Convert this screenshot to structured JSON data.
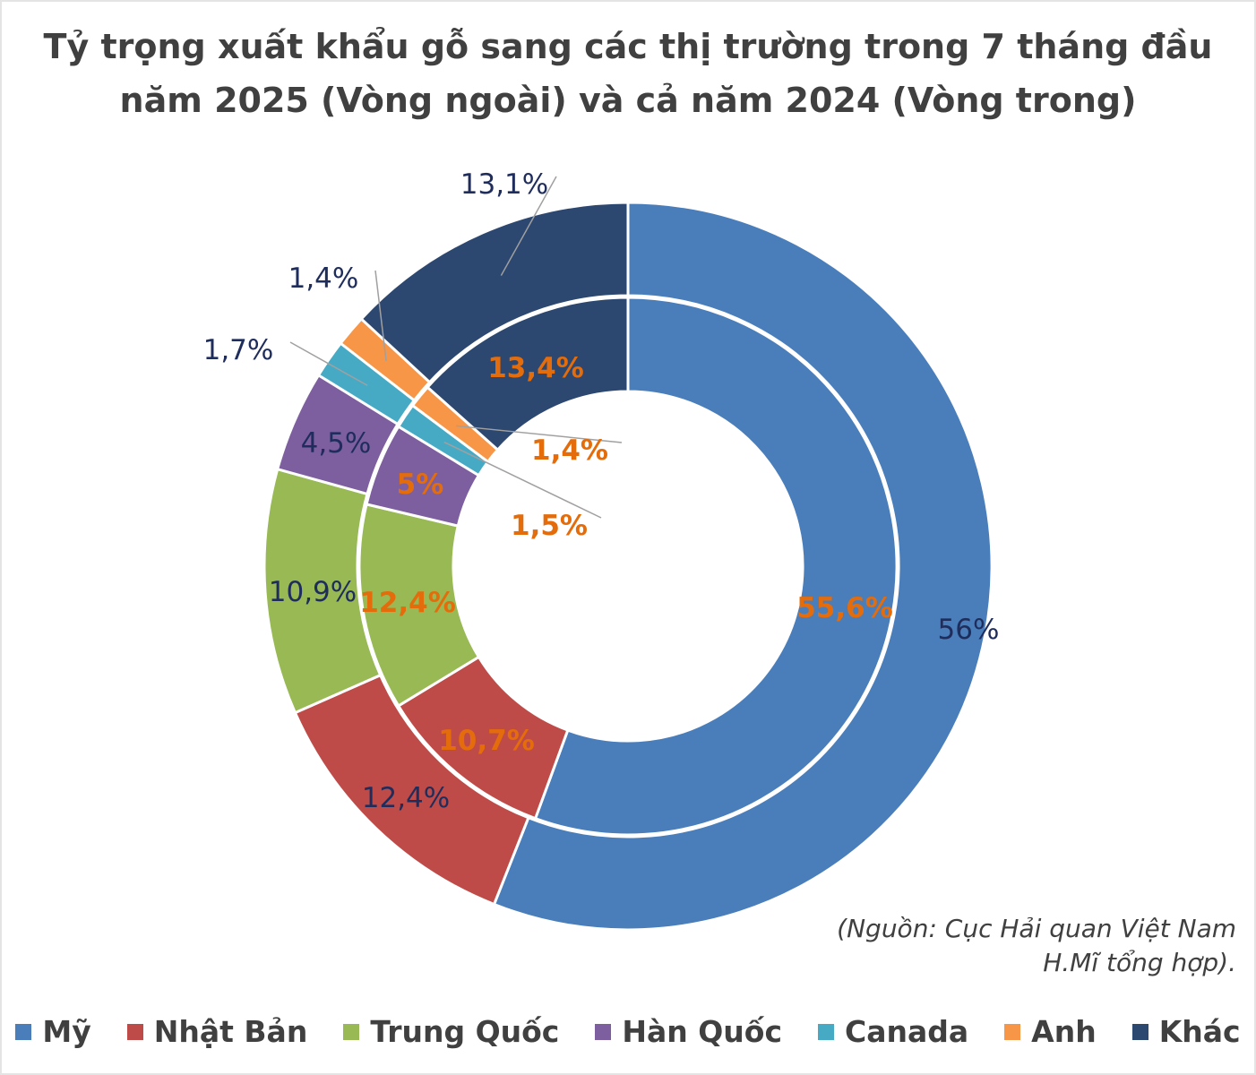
{
  "chart_data": {
    "type": "pie",
    "variant": "nested-donut",
    "title": "Tỷ trọng xuất khẩu gỗ sang các thị trường trong 7 tháng đầu năm 2025 (Vòng ngoài) và cả năm 2024 (Vòng trong)",
    "categories": [
      "Mỹ",
      "Nhật Bản",
      "Trung Quốc",
      "Hàn Quốc",
      "Canada",
      "Anh",
      "Khác"
    ],
    "colors": [
      "#4a7ebb",
      "#be4b48",
      "#98b954",
      "#7d5fa0",
      "#46aac5",
      "#f79646",
      "#2c4770"
    ],
    "series": [
      {
        "ring": "outer",
        "values": [
          56,
          12.4,
          10.9,
          4.5,
          1.7,
          1.4,
          13.1
        ],
        "labels": [
          "56%",
          "12,4%",
          "10,9%",
          "4,5%",
          "1,7%",
          "1,4%",
          "13,1%"
        ],
        "label_color": "#1f2d5c"
      },
      {
        "ring": "inner",
        "values": [
          55.6,
          10.7,
          12.4,
          5,
          1.5,
          1.4,
          13.4
        ],
        "labels": [
          "55,6%",
          "10,7%",
          "12,4%",
          "5%",
          "1,5%",
          "1,4%",
          "13,4%"
        ],
        "label_color": "#e46c0a"
      }
    ],
    "legend": "bottom"
  },
  "source": {
    "line1": "(Nguồn: Cục Hải quan Việt Nam",
    "line2": "H.Mĩ tổng hợp)."
  }
}
